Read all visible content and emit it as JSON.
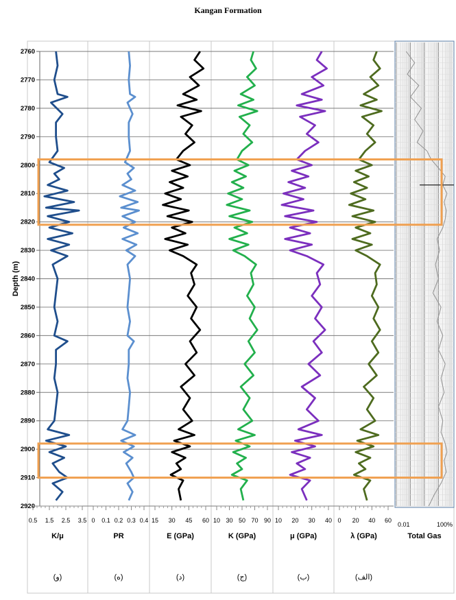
{
  "chart_data": {
    "type": "line",
    "title": "Kangan Formation",
    "ylabel": "Depth (m)",
    "ylim": [
      2760,
      2920
    ],
    "y_ticks": [
      "2760",
      "2770",
      "2780",
      "2790",
      "2800",
      "2810",
      "2820",
      "2830",
      "2840",
      "2850",
      "2860",
      "2870",
      "2880",
      "2890",
      "2900",
      "2910",
      "2920"
    ],
    "highlight_intervals": [
      [
        2798,
        2821
      ],
      [
        2898,
        2910
      ]
    ],
    "highlight_color": "#F0A050",
    "tracks": [
      {
        "name": "K/μ",
        "letter": "(و)",
        "color": "#1F4E8C",
        "xlim": [
          0.5,
          3.5
        ],
        "x_ticks": [
          "0.5",
          "1.5",
          "2.5",
          "3.5"
        ],
        "depth": [
          2760,
          2765,
          2770,
          2775,
          2776,
          2778,
          2782,
          2785,
          2790,
          2795,
          2799,
          2801,
          2803,
          2805,
          2807,
          2809,
          2811,
          2813,
          2815,
          2816,
          2818,
          2820,
          2822,
          2824,
          2826,
          2828,
          2830,
          2832,
          2835,
          2840,
          2845,
          2850,
          2855,
          2860,
          2862,
          2865,
          2870,
          2875,
          2880,
          2885,
          2890,
          2893,
          2895,
          2897,
          2899,
          2901,
          2903,
          2905,
          2908,
          2910,
          2912,
          2915,
          2918
        ],
        "values": [
          1.9,
          2.0,
          1.8,
          2.0,
          2.6,
          1.6,
          2.3,
          1.9,
          1.9,
          2.0,
          1.5,
          2.4,
          1.8,
          2.1,
          1.4,
          2.6,
          1.2,
          3.0,
          1.3,
          3.3,
          1.4,
          2.7,
          1.5,
          2.9,
          1.4,
          2.7,
          1.6,
          2.6,
          1.7,
          2.0,
          1.9,
          1.8,
          2.0,
          1.8,
          2.6,
          1.9,
          1.9,
          1.8,
          2.0,
          1.9,
          1.8,
          1.4,
          2.7,
          1.3,
          2.5,
          1.5,
          2.4,
          1.7,
          2.1,
          2.6,
          1.7,
          2.3,
          1.9
        ]
      },
      {
        "name": "PR",
        "letter": "(ه)",
        "color": "#5B8FCF",
        "xlim": [
          0.0,
          0.4
        ],
        "x_ticks": [
          "0",
          "0.1",
          "0.2",
          "0.3",
          "0.4"
        ],
        "depth": [
          2760,
          2765,
          2770,
          2775,
          2776,
          2778,
          2782,
          2785,
          2790,
          2795,
          2799,
          2801,
          2803,
          2805,
          2807,
          2809,
          2811,
          2813,
          2815,
          2816,
          2818,
          2820,
          2822,
          2824,
          2826,
          2828,
          2830,
          2832,
          2835,
          2840,
          2845,
          2850,
          2855,
          2860,
          2862,
          2865,
          2870,
          2875,
          2880,
          2885,
          2890,
          2893,
          2895,
          2897,
          2899,
          2901,
          2903,
          2905,
          2908,
          2910,
          2912,
          2915,
          2918
        ],
        "values": [
          0.28,
          0.29,
          0.28,
          0.29,
          0.33,
          0.27,
          0.31,
          0.28,
          0.28,
          0.29,
          0.25,
          0.32,
          0.27,
          0.3,
          0.23,
          0.33,
          0.21,
          0.35,
          0.22,
          0.36,
          0.23,
          0.33,
          0.24,
          0.35,
          0.23,
          0.34,
          0.26,
          0.33,
          0.27,
          0.29,
          0.28,
          0.27,
          0.29,
          0.27,
          0.32,
          0.28,
          0.28,
          0.27,
          0.29,
          0.28,
          0.27,
          0.23,
          0.33,
          0.22,
          0.32,
          0.24,
          0.31,
          0.26,
          0.3,
          0.32,
          0.27,
          0.31,
          0.28
        ]
      },
      {
        "name": "E (GPa)",
        "letter": "(د)",
        "color": "#000000",
        "xlim": [
          15,
          60
        ],
        "x_ticks": [
          "15",
          "30",
          "45",
          "60"
        ],
        "depth": [
          2760,
          2763,
          2766,
          2769,
          2772,
          2775,
          2777,
          2779,
          2781,
          2783,
          2786,
          2789,
          2792,
          2795,
          2798,
          2800,
          2802,
          2804,
          2806,
          2808,
          2810,
          2812,
          2814,
          2816,
          2818,
          2820,
          2822,
          2824,
          2826,
          2828,
          2830,
          2832,
          2835,
          2838,
          2842,
          2846,
          2850,
          2854,
          2858,
          2862,
          2866,
          2870,
          2874,
          2878,
          2882,
          2886,
          2890,
          2893,
          2895,
          2897,
          2899,
          2901,
          2903,
          2905,
          2907,
          2909,
          2911,
          2914,
          2918
        ],
        "values": [
          55,
          50,
          58,
          46,
          54,
          40,
          52,
          35,
          56,
          38,
          48,
          42,
          50,
          40,
          34,
          46,
          30,
          44,
          28,
          40,
          24,
          38,
          22,
          45,
          26,
          48,
          30,
          42,
          24,
          44,
          28,
          40,
          52,
          47,
          50,
          44,
          52,
          47,
          55,
          46,
          52,
          42,
          50,
          38,
          46,
          40,
          48,
          36,
          50,
          32,
          46,
          30,
          42,
          34,
          38,
          29,
          40,
          36,
          38
        ]
      },
      {
        "name": "K (GPa)",
        "letter": "(ج)",
        "color": "#22B04C",
        "xlim": [
          10,
          90
        ],
        "x_ticks": [
          "10",
          "30",
          "50",
          "70",
          "90"
        ],
        "depth": [
          2760,
          2763,
          2766,
          2769,
          2772,
          2775,
          2777,
          2779,
          2781,
          2783,
          2786,
          2789,
          2792,
          2795,
          2798,
          2800,
          2802,
          2804,
          2806,
          2808,
          2810,
          2812,
          2814,
          2816,
          2818,
          2820,
          2822,
          2824,
          2826,
          2828,
          2830,
          2832,
          2835,
          2838,
          2842,
          2846,
          2850,
          2854,
          2858,
          2862,
          2866,
          2870,
          2874,
          2878,
          2882,
          2886,
          2890,
          2893,
          2895,
          2897,
          2899,
          2901,
          2903,
          2905,
          2907,
          2909,
          2911,
          2914,
          2918
        ],
        "values": [
          68,
          64,
          72,
          58,
          70,
          48,
          68,
          44,
          74,
          46,
          62,
          52,
          66,
          50,
          42,
          60,
          38,
          56,
          34,
          52,
          28,
          50,
          26,
          62,
          30,
          66,
          38,
          58,
          30,
          60,
          36,
          54,
          72,
          64,
          68,
          58,
          70,
          62,
          74,
          60,
          70,
          54,
          68,
          48,
          62,
          52,
          66,
          44,
          70,
          40,
          62,
          36,
          56,
          42,
          50,
          34,
          58,
          48,
          52
        ]
      },
      {
        "name": "μ (GPa)",
        "letter": "(ب)",
        "color": "#7B2FBE",
        "xlim": [
          10,
          40
        ],
        "x_ticks": [
          "10",
          "20",
          "30",
          "40"
        ],
        "depth": [
          2760,
          2763,
          2766,
          2769,
          2772,
          2775,
          2777,
          2779,
          2781,
          2783,
          2786,
          2789,
          2792,
          2795,
          2798,
          2800,
          2802,
          2804,
          2806,
          2808,
          2810,
          2812,
          2814,
          2816,
          2818,
          2820,
          2822,
          2824,
          2826,
          2828,
          2830,
          2832,
          2835,
          2838,
          2842,
          2846,
          2850,
          2854,
          2858,
          2862,
          2866,
          2870,
          2874,
          2878,
          2882,
          2886,
          2890,
          2893,
          2895,
          2897,
          2899,
          2901,
          2903,
          2905,
          2907,
          2909,
          2911,
          2914,
          2918
        ],
        "values": [
          36,
          33,
          39,
          30,
          37,
          24,
          36,
          21,
          38,
          23,
          32,
          27,
          34,
          26,
          21,
          30,
          18,
          28,
          16,
          26,
          13,
          25,
          12,
          31,
          14,
          33,
          17,
          29,
          14,
          30,
          17,
          27,
          37,
          33,
          35,
          30,
          36,
          32,
          38,
          31,
          36,
          28,
          35,
          24,
          32,
          27,
          34,
          22,
          36,
          20,
          32,
          18,
          29,
          21,
          26,
          17,
          29,
          24,
          27
        ]
      },
      {
        "name": "λ (GPa)",
        "letter": "(الف)",
        "color": "#4E6B1F",
        "xlim": [
          0,
          60
        ],
        "x_ticks": [
          "0",
          "20",
          "40",
          "60"
        ],
        "depth": [
          2760,
          2763,
          2766,
          2769,
          2772,
          2775,
          2777,
          2779,
          2781,
          2783,
          2786,
          2789,
          2792,
          2795,
          2798,
          2800,
          2802,
          2804,
          2806,
          2808,
          2810,
          2812,
          2814,
          2816,
          2818,
          2820,
          2822,
          2824,
          2826,
          2828,
          2830,
          2832,
          2835,
          2838,
          2842,
          2846,
          2850,
          2854,
          2858,
          2862,
          2866,
          2870,
          2874,
          2878,
          2882,
          2886,
          2890,
          2893,
          2895,
          2897,
          2899,
          2901,
          2903,
          2905,
          2907,
          2909,
          2911,
          2914,
          2918
        ],
        "values": [
          46,
          42,
          50,
          38,
          48,
          30,
          46,
          26,
          52,
          28,
          42,
          34,
          44,
          32,
          24,
          40,
          20,
          36,
          18,
          34,
          14,
          32,
          12,
          42,
          16,
          44,
          20,
          38,
          16,
          40,
          20,
          34,
          50,
          44,
          46,
          40,
          48,
          42,
          50,
          40,
          48,
          36,
          46,
          30,
          42,
          34,
          44,
          26,
          48,
          22,
          42,
          20,
          38,
          24,
          32,
          18,
          38,
          30,
          34
        ]
      },
      {
        "name": "Total Gas",
        "color": "#909090",
        "log_scale": true,
        "x_ticks": [
          "0.01",
          "100%"
        ],
        "depth": [
          2760,
          2764,
          2768,
          2772,
          2776,
          2780,
          2784,
          2788,
          2792,
          2795,
          2798,
          2801,
          2804,
          2807,
          2810,
          2813,
          2816,
          2819,
          2822,
          2826,
          2830,
          2835,
          2840,
          2845,
          2850,
          2855,
          2860,
          2865,
          2870,
          2875,
          2880,
          2885,
          2890,
          2894,
          2898,
          2901,
          2904,
          2908,
          2912,
          2916,
          2920
        ],
        "values": [
          0.05,
          0.2,
          0.06,
          0.4,
          0.1,
          0.6,
          0.2,
          0.8,
          0.3,
          1.5,
          3,
          10,
          30,
          20,
          40,
          25,
          35,
          30,
          20,
          8,
          12,
          6,
          10,
          4,
          15,
          8,
          20,
          10,
          30,
          15,
          25,
          10,
          20,
          15,
          30,
          40,
          25,
          35,
          15,
          5,
          2
        ]
      }
    ]
  }
}
